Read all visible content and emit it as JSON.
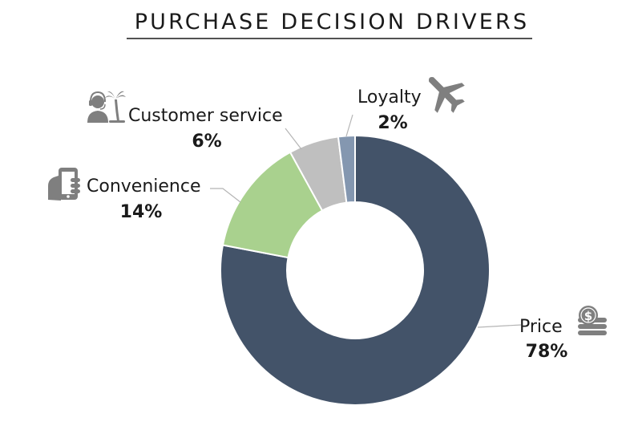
{
  "chart_data": {
    "type": "pie",
    "title": "PURCHASE DECISION DRIVERS",
    "style": "donut",
    "slices": [
      {
        "name": "Price",
        "value": 78,
        "label": "78%",
        "color": "#435369",
        "icon": "coins-dollar-icon"
      },
      {
        "name": "Convenience",
        "value": 14,
        "label": "14%",
        "color": "#a9d18e",
        "icon": "hand-smartphone-icon"
      },
      {
        "name": "Customer service",
        "value": 6,
        "label": "6%",
        "color": "#bfbfbf",
        "icon": "support-agent-palm-icon"
      },
      {
        "name": "Loyalty",
        "value": 2,
        "label": "2%",
        "color": "#8497b0",
        "icon": "airplane-icon"
      }
    ]
  },
  "colors": {
    "icon": "#7f7f7f",
    "leader": "#b5b5b5",
    "title_rule": "#1a1a1a"
  }
}
